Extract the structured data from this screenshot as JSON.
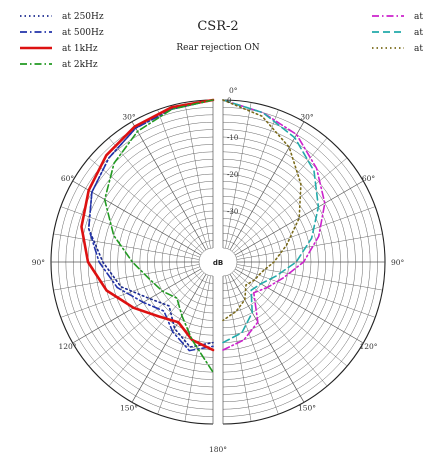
{
  "chart_data": {
    "type": "polar",
    "title": "CSR-2",
    "subtitle": "Rear rejection ON",
    "radial_unit": "dB",
    "radial_ticks": [
      {
        "value": 0,
        "label": "0"
      },
      {
        "value": -10,
        "label": "-10"
      },
      {
        "value": -20,
        "label": "-20"
      },
      {
        "value": -30,
        "label": "-30"
      }
    ],
    "rlim": [
      -40,
      0
    ],
    "angle_ticks": [
      {
        "value": 0,
        "label": "0°"
      },
      {
        "value": 30,
        "label": "30°"
      },
      {
        "value": 60,
        "label": "60°"
      },
      {
        "value": 90,
        "label": "90°"
      },
      {
        "value": 120,
        "label": "120°"
      },
      {
        "value": 150,
        "label": "150°"
      },
      {
        "value": 180,
        "label": "180°"
      }
    ],
    "angles": [
      0,
      15,
      30,
      45,
      60,
      75,
      90,
      105,
      120,
      135,
      150,
      165,
      180
    ],
    "left_series": [
      {
        "name": "at 250Hz",
        "color": "#1b2a8f",
        "style": "dotted",
        "values": [
          0,
          -1,
          -2,
          -4,
          -6,
          -9,
          -14,
          -18,
          -24,
          -27,
          -23,
          -20,
          -22
        ]
      },
      {
        "name": "at 500Hz",
        "color": "#2233aa",
        "style": "dashdot",
        "values": [
          0,
          -1,
          -2,
          -4,
          -6,
          -9,
          -13,
          -17,
          -22,
          -25,
          -22,
          -19,
          -21
        ]
      },
      {
        "name": "at 1kHz",
        "color": "#dd1111",
        "style": "solid",
        "values": [
          0,
          -0.5,
          -1.5,
          -3,
          -5,
          -7,
          -10,
          -14,
          -19,
          -23,
          -25,
          -22,
          -20
        ]
      },
      {
        "name": "at 2kHz",
        "color": "#229922",
        "style": "dashdot",
        "values": [
          0,
          -1,
          -3,
          -6,
          -10,
          -16,
          -22,
          -26,
          -28,
          -30,
          -27,
          -22,
          -14
        ]
      }
    ],
    "right_series": [
      {
        "name": "at",
        "color": "#cc22cc",
        "style": "dashdot",
        "values": [
          0,
          -2,
          -4,
          -8,
          -12,
          -17,
          -22,
          -27,
          -30,
          -32,
          -25,
          -22,
          -20
        ]
      },
      {
        "name": "at",
        "color": "#22aaaa",
        "style": "dashed",
        "values": [
          0,
          -2,
          -5,
          -9,
          -14,
          -19,
          -24,
          -29,
          -32,
          -33,
          -28,
          -24,
          -22
        ]
      },
      {
        "name": "at",
        "color": "#7a6a1a",
        "style": "dotted",
        "values": [
          0,
          -3,
          -8,
          -14,
          -20,
          -26,
          -30,
          -33,
          -34,
          -35,
          -32,
          -30,
          -28
        ]
      }
    ]
  }
}
